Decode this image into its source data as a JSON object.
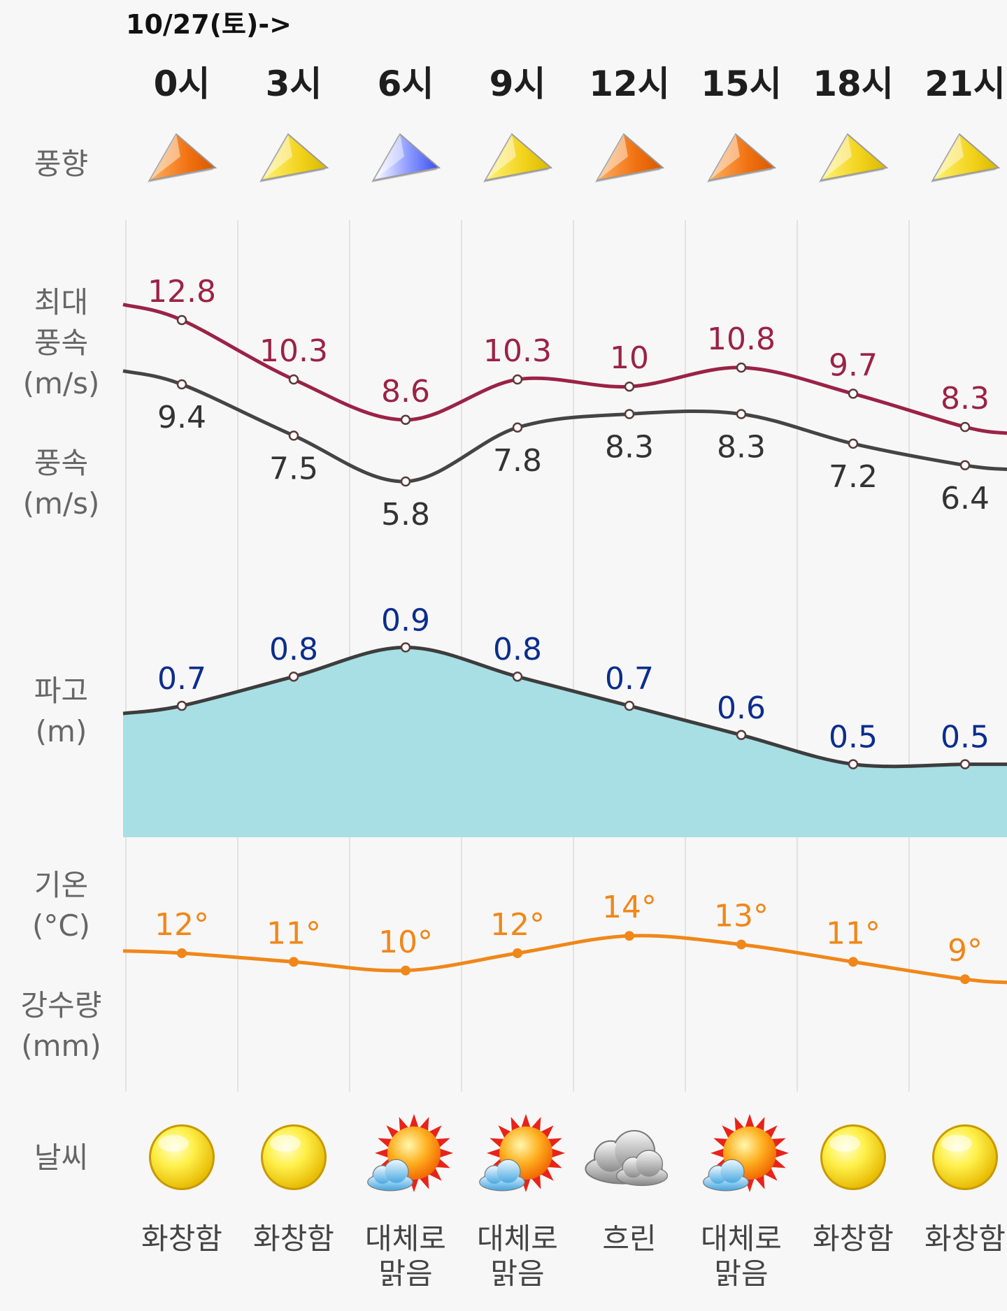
{
  "header": {
    "date": "10/27(토)->",
    "hours": [
      "0시",
      "3시",
      "6시",
      "9시",
      "12시",
      "15시",
      "18시",
      "21시"
    ]
  },
  "labels": {
    "wind_dir": "풍향",
    "max_wind_1": "최대",
    "max_wind_2": "풍속",
    "max_wind_3": "(m/s)",
    "wind_1": "풍속",
    "wind_2": "(m/s)",
    "wave_1": "파고",
    "wave_2": "(m)",
    "temp_1": "기온",
    "temp_2": "(°C)",
    "precip_1": "강수량",
    "precip_2": "(mm)",
    "weather": "날씨"
  },
  "colors": {
    "max_wind": "#9b2246",
    "wind": "#444444",
    "wave_fill": "#a7dfe4",
    "wave_line": "#3d3d3d",
    "wave_label": "#0b2d8c",
    "temp": "#f08719",
    "arrow_orange": "#f07010",
    "arrow_yellow": "#f2d21a",
    "arrow_blue": "#3a4ef0"
  },
  "weather_icons": [
    "sun-icon",
    "sun-icon",
    "partly-cloudy-icon",
    "partly-cloudy-icon",
    "cloud-icon",
    "partly-cloudy-icon",
    "sun-icon",
    "sun-icon"
  ],
  "conditions": [
    [
      "화창함"
    ],
    [
      "화창함"
    ],
    [
      "대체로",
      "맑음"
    ],
    [
      "대체로",
      "맑음"
    ],
    [
      "흐린"
    ],
    [
      "대체로",
      "맑음"
    ],
    [
      "화창함"
    ],
    [
      "화창함"
    ]
  ],
  "chart_data": {
    "type": "line",
    "x": [
      "0시",
      "3시",
      "6시",
      "9시",
      "12시",
      "15시",
      "18시",
      "21시"
    ],
    "wind_direction": [
      {
        "color": "orange"
      },
      {
        "color": "yellow"
      },
      {
        "color": "blue"
      },
      {
        "color": "yellow"
      },
      {
        "color": "orange"
      },
      {
        "color": "orange"
      },
      {
        "color": "yellow"
      },
      {
        "color": "yellow"
      }
    ],
    "series": [
      {
        "name": "최대 풍속",
        "unit": "m/s",
        "values": [
          12.8,
          10.3,
          8.6,
          10.3,
          10,
          10.8,
          9.7,
          8.3
        ],
        "labels": [
          "12.8",
          "10.3",
          "8.6",
          "10.3",
          "10",
          "10.8",
          "9.7",
          "8.3"
        ]
      },
      {
        "name": "풍속",
        "unit": "m/s",
        "values": [
          9.4,
          7.5,
          5.8,
          7.8,
          8.3,
          8.3,
          7.2,
          6.4
        ],
        "labels": [
          "9.4",
          "7.5",
          "5.8",
          "7.8",
          "8.3",
          "8.3",
          "7.2",
          "6.4"
        ]
      },
      {
        "name": "파고",
        "unit": "m",
        "values": [
          0.7,
          0.8,
          0.9,
          0.8,
          0.7,
          0.6,
          0.5,
          0.5
        ],
        "labels": [
          "0.7",
          "0.8",
          "0.9",
          "0.8",
          "0.7",
          "0.6",
          "0.5",
          "0.5"
        ]
      },
      {
        "name": "기온",
        "unit": "°C",
        "values": [
          12,
          11,
          10,
          12,
          14,
          13,
          11,
          9
        ],
        "labels": [
          "12°",
          "11°",
          "10°",
          "12°",
          "14°",
          "13°",
          "11°",
          "9°"
        ]
      }
    ]
  }
}
